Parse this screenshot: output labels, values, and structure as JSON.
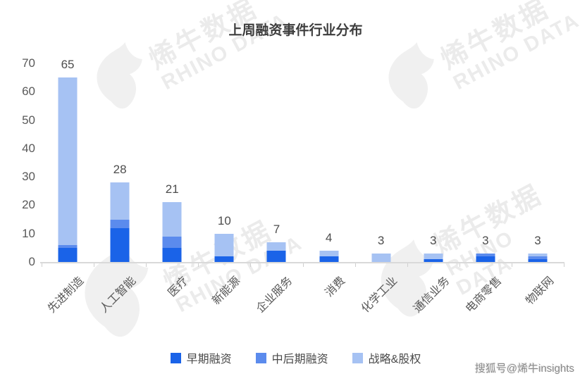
{
  "title": "上周融资事件行业分布",
  "watermark": {
    "cn": "烯牛数据",
    "en": "RHINO DATA"
  },
  "footer": {
    "sohu": "搜狐号@烯牛insights"
  },
  "colors": {
    "early": "#1a63e8",
    "midlate": "#5b8bed",
    "strategic": "#a6c2f3",
    "axis_line": "#d9d9d9",
    "tick": "#cfcfcf",
    "label_text": "#595959",
    "value_text": "#4d4d4d",
    "title_text": "#3d3d3d",
    "watermark_text": "#ebebeb"
  },
  "chart_data": {
    "type": "bar",
    "stacked": true,
    "title": "上周融资事件行业分布",
    "xlabel": "",
    "ylabel": "",
    "ylim": [
      0,
      70
    ],
    "yticks": [
      0,
      10,
      20,
      30,
      40,
      50,
      60,
      70
    ],
    "grid": false,
    "legend_position": "bottom",
    "categories": [
      "先进制造",
      "人工智能",
      "医疗",
      "新能源",
      "企业服务",
      "消费",
      "化学工业",
      "通信业务",
      "电商零售",
      "物联网"
    ],
    "totals": [
      65,
      28,
      21,
      10,
      7,
      4,
      3,
      3,
      3,
      3
    ],
    "series": [
      {
        "name": "早期融资",
        "color": "#1a63e8",
        "values": [
          5,
          12,
          5,
          2,
          4,
          2,
          0,
          1,
          2,
          1
        ]
      },
      {
        "name": "中后期融资",
        "color": "#5b8bed",
        "values": [
          1,
          3,
          4,
          0,
          0,
          0,
          0,
          0,
          1,
          1
        ]
      },
      {
        "name": "战略&股权",
        "color": "#a6c2f3",
        "values": [
          59,
          13,
          12,
          8,
          3,
          2,
          3,
          2,
          0,
          1
        ]
      }
    ]
  }
}
